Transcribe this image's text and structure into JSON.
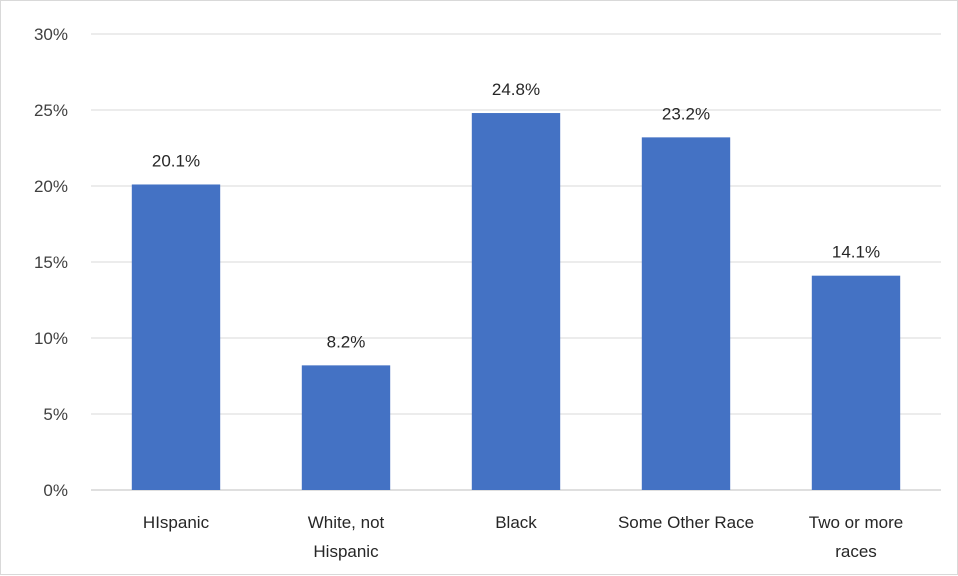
{
  "chart_data": {
    "type": "bar",
    "title": "",
    "xlabel": "",
    "ylabel": "",
    "categories": [
      [
        "HIspanic"
      ],
      [
        "White, not",
        "Hispanic"
      ],
      [
        "Black"
      ],
      [
        "Some Other Race"
      ],
      [
        "Two or more",
        "races"
      ]
    ],
    "values": [
      20.1,
      8.2,
      24.8,
      23.2,
      14.1
    ],
    "data_labels": [
      "20.1%",
      "8.2%",
      "24.8%",
      "23.2%",
      "14.1%"
    ],
    "ylim": [
      0,
      30
    ],
    "yticks": [
      0,
      5,
      10,
      15,
      20,
      25,
      30
    ],
    "ytick_labels": [
      "0%",
      "5%",
      "10%",
      "15%",
      "20%",
      "25%",
      "30%"
    ],
    "grid": true,
    "legend": "none",
    "colors": {
      "bar": "#4472C4",
      "grid": "#d9d9d9",
      "axis": "#bfbfbf"
    }
  }
}
